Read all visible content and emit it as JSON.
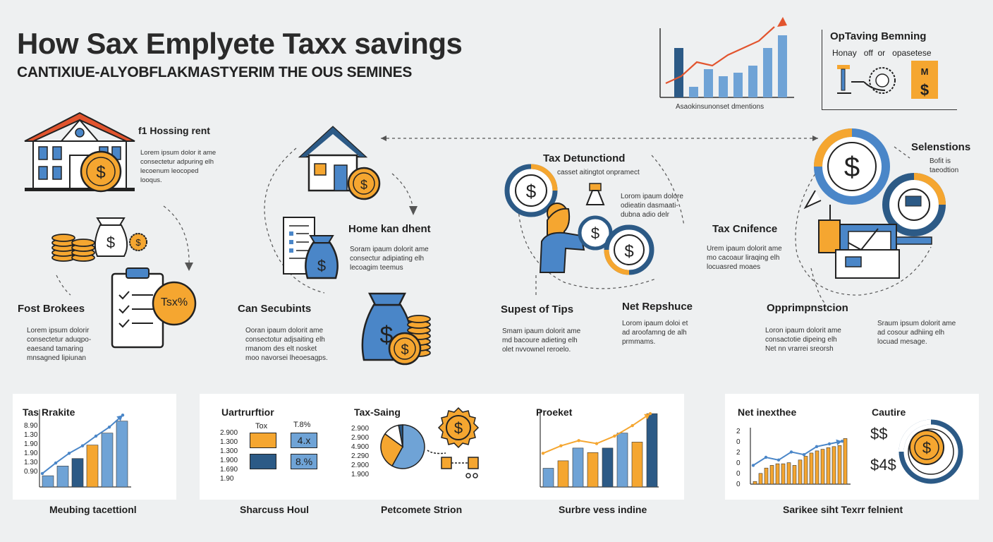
{
  "header": {
    "title": "How Sax Emplyete Taxx  savings",
    "subtitle": "CANTIXIUE-ALYOBFLAKMASTYERIM THE OUS SEMINES"
  },
  "top_chart": {
    "caption": "Asaokinsunonset dmentions",
    "values": [
      7,
      1.5,
      4,
      3,
      3.5,
      4.5,
      7,
      8.8
    ],
    "trend": [
      2,
      3,
      5,
      4.5,
      6,
      7,
      8,
      10
    ]
  },
  "top_right": {
    "title": "OpTaving Bemning",
    "labels": "Honay   off  or   opasetese",
    "badge": "M"
  },
  "sections": {
    "housing": {
      "title": "f1 Hossing rent",
      "body": "Lorem ipsum dolor it ame\nconsectetur adpuring elh\nlecoenum leocoped\nlooqus."
    },
    "fost": {
      "title": "Fost Brokees",
      "body": "Lorem ipsum dolorir\nconsectetur aduqpo-\neaesand tamaring\nmnsagned lipiunan",
      "badge": "Tsx%"
    },
    "home": {
      "title": "Home kan dhent",
      "body": "Soram ipaum dolorit ame\nconsectur adipiating elh\nlecoagim teemus"
    },
    "can": {
      "title": "Can Secubints",
      "body": "Ooran ipaum dolorit ame\nconsectotur adjsaiting elh\nrmanom des elt nosket\nmoo navorsei lheoesagps."
    },
    "tax_ded": {
      "title": "Tax Detunctiond",
      "sub": "casset aitingtot onpramect",
      "body": "Lorom ipaum dolore\nodieatin dasmaati-\ndubna adio delr"
    },
    "supest": {
      "title": "Supest of Tips",
      "body": "Smam ipaum dolorit ame\nmd bacoure adieting elh\nolet nvvownel reroelo."
    },
    "net_rep": {
      "title": "Net Repshuce",
      "body": "Lorom ipaum doloi et\nad aroofamng de alh\nprmmams."
    },
    "tax_conf": {
      "title": "Tax Cnifence",
      "body": "Urem ipaum dolorit ame\nmo cacoaur liraqing elh\nlocuasred moaes"
    },
    "selens": {
      "title": "Selenstions",
      "body": "Bofit is\ntaeodtion"
    },
    "opprim": {
      "title": "Opprimpnstcion",
      "body": "Loron ipaum dolorit ame\nconsactotie dipeing elh\nNet nn vrarrei sreorsh"
    },
    "right_body": {
      "body": "Sraum ipsum dolorit ame\nad cosour adhiing elh\nlocuad mesage."
    }
  },
  "panels": {
    "p1": {
      "title": "Tas Rrakite",
      "ticks": [
        "8.90",
        "1.30",
        "1.90",
        "1.90",
        "1.30",
        "0.90"
      ],
      "values": [
        1.5,
        2.8,
        3.8,
        5.6,
        7.2,
        8.8
      ],
      "trend": [
        1.8,
        3.2,
        4.5,
        5.5,
        6.8,
        8.0,
        9.6
      ],
      "caption": "Meubing tacettionl"
    },
    "p2": {
      "title": "Uartrurftior",
      "col1": "Tox",
      "col2": "T.8%",
      "ticks": [
        "2.900",
        "1.300",
        "1.300",
        "1.900",
        "1.690",
        "1.90"
      ],
      "cell1": "",
      "cell2": "4.x",
      "cell3": "",
      "cell4": "8.%",
      "caption": "Sharcuss Houl"
    },
    "p3": {
      "title": "Tax-Saing",
      "ticks": [
        "2.900",
        "2.900",
        "4.900",
        "2.290",
        "2.900",
        "1.900"
      ],
      "pie": [
        58,
        27,
        12,
        3
      ],
      "caption": "Petcomete Strion"
    },
    "p4": {
      "title": "Proeket",
      "values": [
        2.5,
        3.5,
        5.2,
        4.6,
        5.2,
        7.2,
        6.0,
        9.8
      ],
      "trend": [
        4.5,
        5.5,
        6.2,
        5.8,
        6.8,
        8.2,
        9.8
      ],
      "caption": "Surbre vess indine"
    },
    "p5": {
      "title": "Net inexthee",
      "ticks": [
        "2",
        "0",
        "2",
        "0",
        "0",
        "0"
      ],
      "values": [
        0.5,
        2,
        3,
        3.5,
        3.8,
        3.8,
        4,
        3.5,
        4.5,
        5.2,
        5.8,
        6.2,
        6.5,
        6.8,
        7.0,
        7.2,
        8.5
      ],
      "trend": [
        3.5,
        5,
        4.5,
        6,
        5.5,
        7,
        7.5,
        8
      ],
      "caption": "Sarikee siht Texrr felnient"
    },
    "p6": {
      "title": "Cautire",
      "sym1": "$$",
      "sym2": "$4$"
    }
  },
  "colors": {
    "orange": "#f5a630",
    "blue": "#4a86c8",
    "navy": "#2c5a86",
    "lightblue": "#6fa3d6",
    "red": "#e2542e"
  }
}
